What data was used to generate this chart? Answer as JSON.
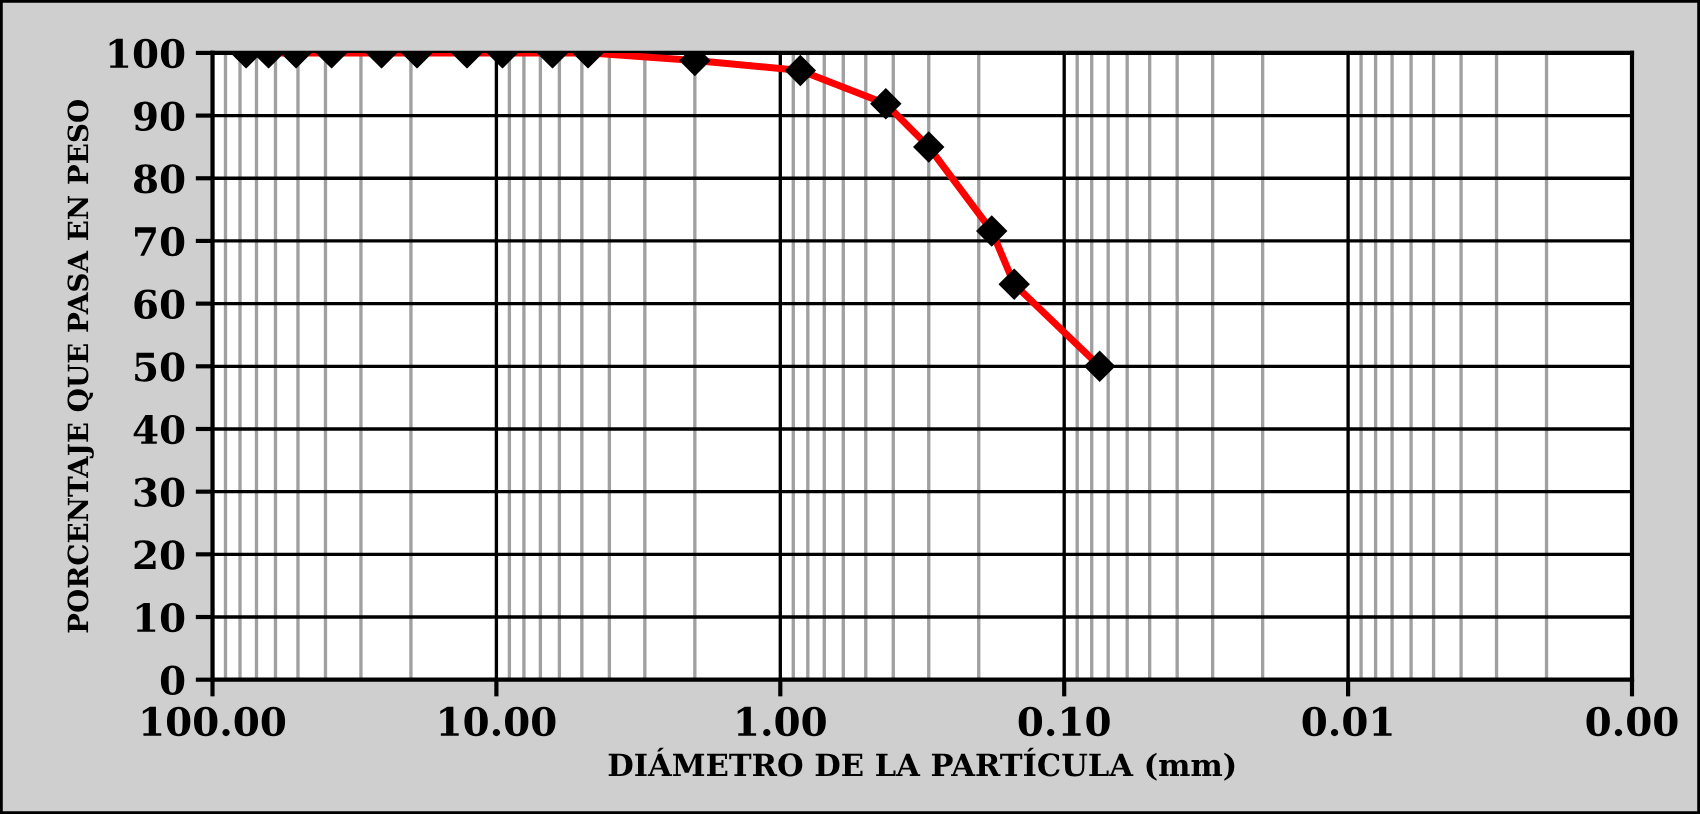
{
  "chart_data": {
    "type": "line",
    "xlabel": "DIÁMETRO DE LA PARTÍCULA (mm)",
    "ylabel": "PORCENTAJE QUE PASA EN PESO",
    "x": [
      76.2,
      63.5,
      50.8,
      38.1,
      25.4,
      19.05,
      12.7,
      9.525,
      6.35,
      4.76,
      2.0,
      0.85,
      0.425,
      0.3,
      0.18,
      0.15,
      0.075
    ],
    "series": [
      {
        "color": "#ff0000",
        "values": [
          100,
          100,
          100,
          100,
          100,
          100,
          100,
          100,
          100,
          100,
          98.8,
          97.2,
          91.9,
          85.0,
          71.6,
          63.1,
          50
        ]
      }
    ],
    "log": "x",
    "xlim": [
      100,
      0.001
    ],
    "xticks": [
      {
        "value": 100,
        "label": "100.00"
      },
      {
        "value": 10,
        "label": "10.00"
      },
      {
        "value": 1,
        "label": "1.00"
      },
      {
        "value": 0.1,
        "label": "0.10"
      },
      {
        "value": 0.01,
        "label": "0.01"
      },
      {
        "value": 0.001,
        "label": "0.00"
      }
    ],
    "ylim": [
      0,
      100
    ],
    "yticks": [
      0,
      10,
      20,
      30,
      40,
      50,
      60,
      70,
      80,
      90,
      100
    ],
    "grid": true,
    "marker": "diamond",
    "line_style": "solid"
  }
}
